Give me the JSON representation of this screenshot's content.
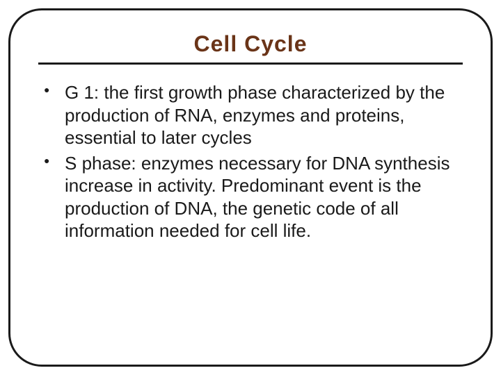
{
  "slide": {
    "title": "Cell Cycle",
    "title_color": "#6a3418",
    "title_fontsize": 32,
    "title_font_family": "Arial Black, Arial, sans-serif",
    "underline_color": "#1a1a1a",
    "frame_border_color": "#1a1a1a",
    "frame_border_radius": 48,
    "background_color": "#ffffff",
    "bullet_color": "#1a1a1a",
    "body_fontsize": 26,
    "body_color": "#1a1a1a",
    "items": [
      "G 1: the first growth phase characterized by the production of RNA, enzymes and proteins, essential to later cycles",
      "S phase: enzymes necessary for DNA synthesis increase in activity. Predominant event is the production of DNA, the genetic code of all information needed for cell life."
    ]
  }
}
